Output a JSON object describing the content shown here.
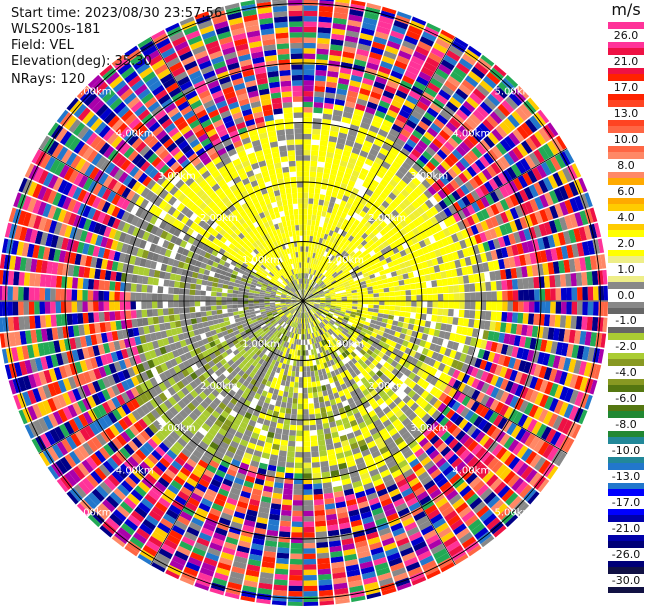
{
  "header": {
    "start_time": "Start time: 2023/08/30 23:57:56",
    "instrument": "WLS200s-181",
    "field": "Field: VEL",
    "elevation": "Elevation(deg): 35.30",
    "nrays": "NRays: 120"
  },
  "ppi": {
    "range_rings_km": [
      "1.00km",
      "2.00km",
      "3.00km",
      "4.00km",
      "5.00km"
    ],
    "number_of_rays": 120
  },
  "colorbar": {
    "unit": "m/s",
    "labels": [
      "26.0",
      "21.0",
      "17.0",
      "13.0",
      "10.0",
      "8.0",
      "6.0",
      "4.0",
      "2.0",
      "1.0",
      "0.0",
      "-1.0",
      "-2.0",
      "-4.0",
      "-6.0",
      "-8.0",
      "-10.0",
      "-13.0",
      "-17.0",
      "-21.0",
      "-26.0",
      "-30.0"
    ],
    "colors": [
      "#ff3399",
      "#ee1144",
      "#ff2200",
      "#ff4422",
      "#ff6644",
      "#ff8866",
      "#ffaa00",
      "#ffcc00",
      "#ffff00",
      "#eeee88",
      "#888888",
      "#666666",
      "#aacc33",
      "#889922",
      "#557711",
      "#228833",
      "#228899",
      "#2277cc",
      "#0000ff",
      "#0000aa",
      "#000077",
      "#111144"
    ]
  },
  "colors": {
    "rain_palette": [
      "#ff3399",
      "#ff2200",
      "#ff6644",
      "#ffcc00",
      "#0000cc",
      "#2277cc",
      "#22aa55",
      "#ee1144",
      "#aa00aa",
      "#ff8866",
      "#000088",
      "#888888"
    ]
  }
}
